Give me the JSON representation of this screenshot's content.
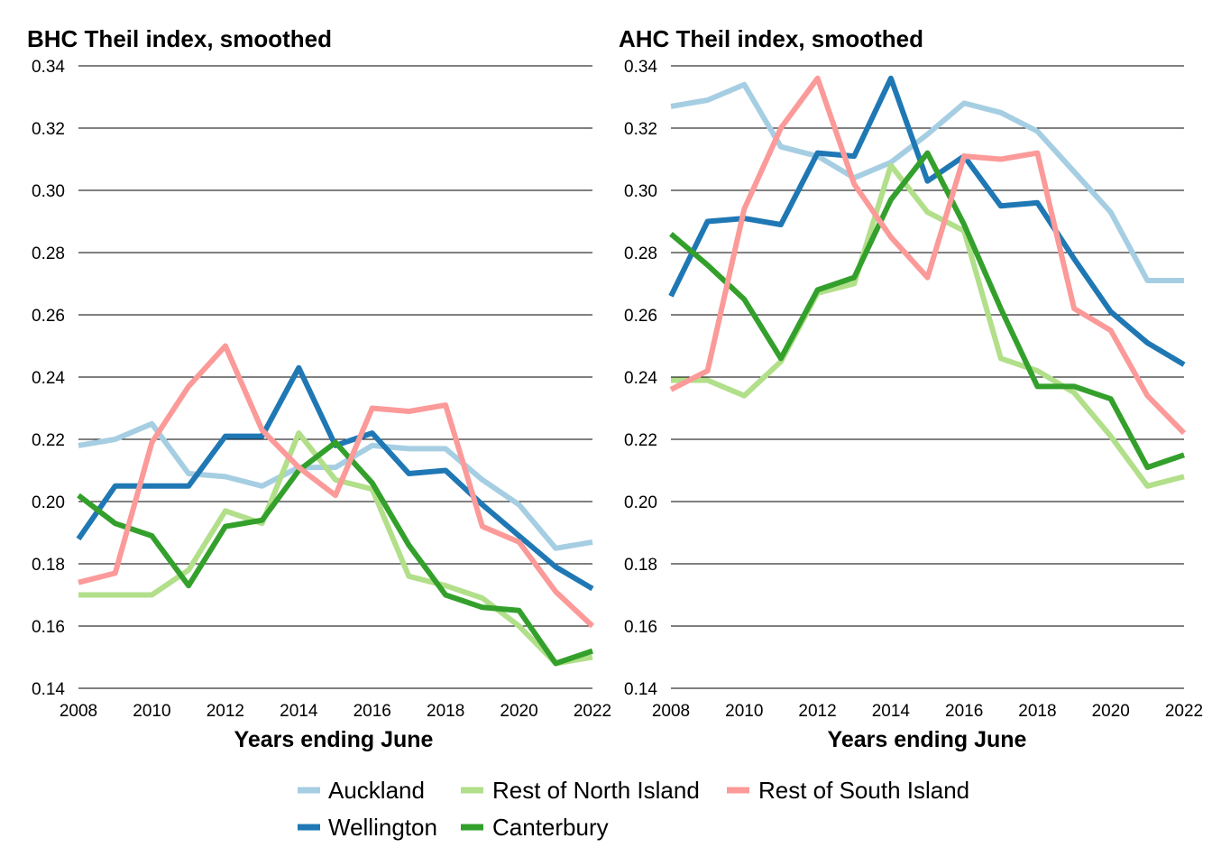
{
  "chart_data": [
    {
      "type": "line",
      "title": "BHC Theil index, smoothed",
      "xlabel": "Years ending June",
      "ylabel": "",
      "ylim": [
        0.14,
        0.34
      ],
      "yticks": [
        "0.14",
        "0.16",
        "0.18",
        "0.20",
        "0.22",
        "0.24",
        "0.26",
        "0.28",
        "0.30",
        "0.32",
        "0.34"
      ],
      "xlim": [
        2008,
        2022
      ],
      "xticks": [
        "2008",
        "2010",
        "2012",
        "2014",
        "2016",
        "2018",
        "2020",
        "2022"
      ],
      "grid": "horizontal",
      "x": [
        2008,
        2009,
        2010,
        2011,
        2012,
        2013,
        2014,
        2015,
        2016,
        2017,
        2018,
        2019,
        2020,
        2021,
        2022
      ],
      "series": [
        {
          "name": "Auckland",
          "color": "#a6cee3",
          "values": [
            0.218,
            0.22,
            0.225,
            0.209,
            0.208,
            0.205,
            0.211,
            0.211,
            0.218,
            0.217,
            0.217,
            0.207,
            0.199,
            0.185,
            0.187
          ]
        },
        {
          "name": "Wellington",
          "color": "#1f78b4",
          "values": [
            0.188,
            0.205,
            0.205,
            0.205,
            0.221,
            0.221,
            0.243,
            0.218,
            0.222,
            0.209,
            0.21,
            0.199,
            0.189,
            0.179,
            0.172
          ]
        },
        {
          "name": "Rest of North Island",
          "color": "#b2df8a",
          "values": [
            0.17,
            0.17,
            0.17,
            0.178,
            0.197,
            0.193,
            0.222,
            0.207,
            0.204,
            0.176,
            0.173,
            0.169,
            0.16,
            0.148,
            0.15
          ]
        },
        {
          "name": "Canterbury",
          "color": "#33a02c",
          "values": [
            0.202,
            0.193,
            0.189,
            0.173,
            0.192,
            0.194,
            0.21,
            0.219,
            0.206,
            0.186,
            0.17,
            0.166,
            0.165,
            0.148,
            0.152
          ]
        },
        {
          "name": "Rest of South Island",
          "color": "#fb9a99",
          "values": [
            0.174,
            0.177,
            0.219,
            0.237,
            0.25,
            0.223,
            0.211,
            0.202,
            0.23,
            0.229,
            0.231,
            0.192,
            0.187,
            0.171,
            0.16
          ]
        }
      ]
    },
    {
      "type": "line",
      "title": "AHC Theil index, smoothed",
      "xlabel": "Years ending June",
      "ylabel": "",
      "ylim": [
        0.14,
        0.34
      ],
      "yticks": [
        "0.14",
        "0.16",
        "0.18",
        "0.20",
        "0.22",
        "0.24",
        "0.26",
        "0.28",
        "0.30",
        "0.32",
        "0.34"
      ],
      "xlim": [
        2008,
        2022
      ],
      "xticks": [
        "2008",
        "2010",
        "2012",
        "2014",
        "2016",
        "2018",
        "2020",
        "2022"
      ],
      "grid": "horizontal",
      "x": [
        2008,
        2009,
        2010,
        2011,
        2012,
        2013,
        2014,
        2015,
        2016,
        2017,
        2018,
        2019,
        2020,
        2021,
        2022
      ],
      "series": [
        {
          "name": "Auckland",
          "color": "#a6cee3",
          "values": [
            0.327,
            0.329,
            0.334,
            0.314,
            0.311,
            0.304,
            0.309,
            0.318,
            0.328,
            0.325,
            0.319,
            0.306,
            0.293,
            0.271,
            0.271
          ]
        },
        {
          "name": "Wellington",
          "color": "#1f78b4",
          "values": [
            0.266,
            0.29,
            0.291,
            0.289,
            0.312,
            0.311,
            0.336,
            0.303,
            0.311,
            0.295,
            0.296,
            0.278,
            0.261,
            0.251,
            0.244
          ]
        },
        {
          "name": "Rest of North Island",
          "color": "#b2df8a",
          "values": [
            0.239,
            0.239,
            0.234,
            0.245,
            0.267,
            0.27,
            0.308,
            0.293,
            0.287,
            0.246,
            0.242,
            0.235,
            0.221,
            0.205,
            0.208
          ]
        },
        {
          "name": "Canterbury",
          "color": "#33a02c",
          "values": [
            0.286,
            0.276,
            0.265,
            0.246,
            0.268,
            0.272,
            0.297,
            0.312,
            0.289,
            0.262,
            0.237,
            0.237,
            0.233,
            0.211,
            0.215
          ]
        },
        {
          "name": "Rest of South Island",
          "color": "#fb9a99",
          "values": [
            0.236,
            0.242,
            0.294,
            0.32,
            0.336,
            0.302,
            0.285,
            0.272,
            0.311,
            0.31,
            0.312,
            0.262,
            0.255,
            0.234,
            0.222
          ]
        }
      ]
    }
  ],
  "legend": {
    "position": "bottom",
    "entries": [
      {
        "label": "Auckland",
        "color": "#a6cee3"
      },
      {
        "label": "Rest of North Island",
        "color": "#b2df8a"
      },
      {
        "label": "Rest of South Island",
        "color": "#fb9a99"
      },
      {
        "label": "Wellington",
        "color": "#1f78b4"
      },
      {
        "label": "Canterbury",
        "color": "#33a02c"
      }
    ]
  }
}
